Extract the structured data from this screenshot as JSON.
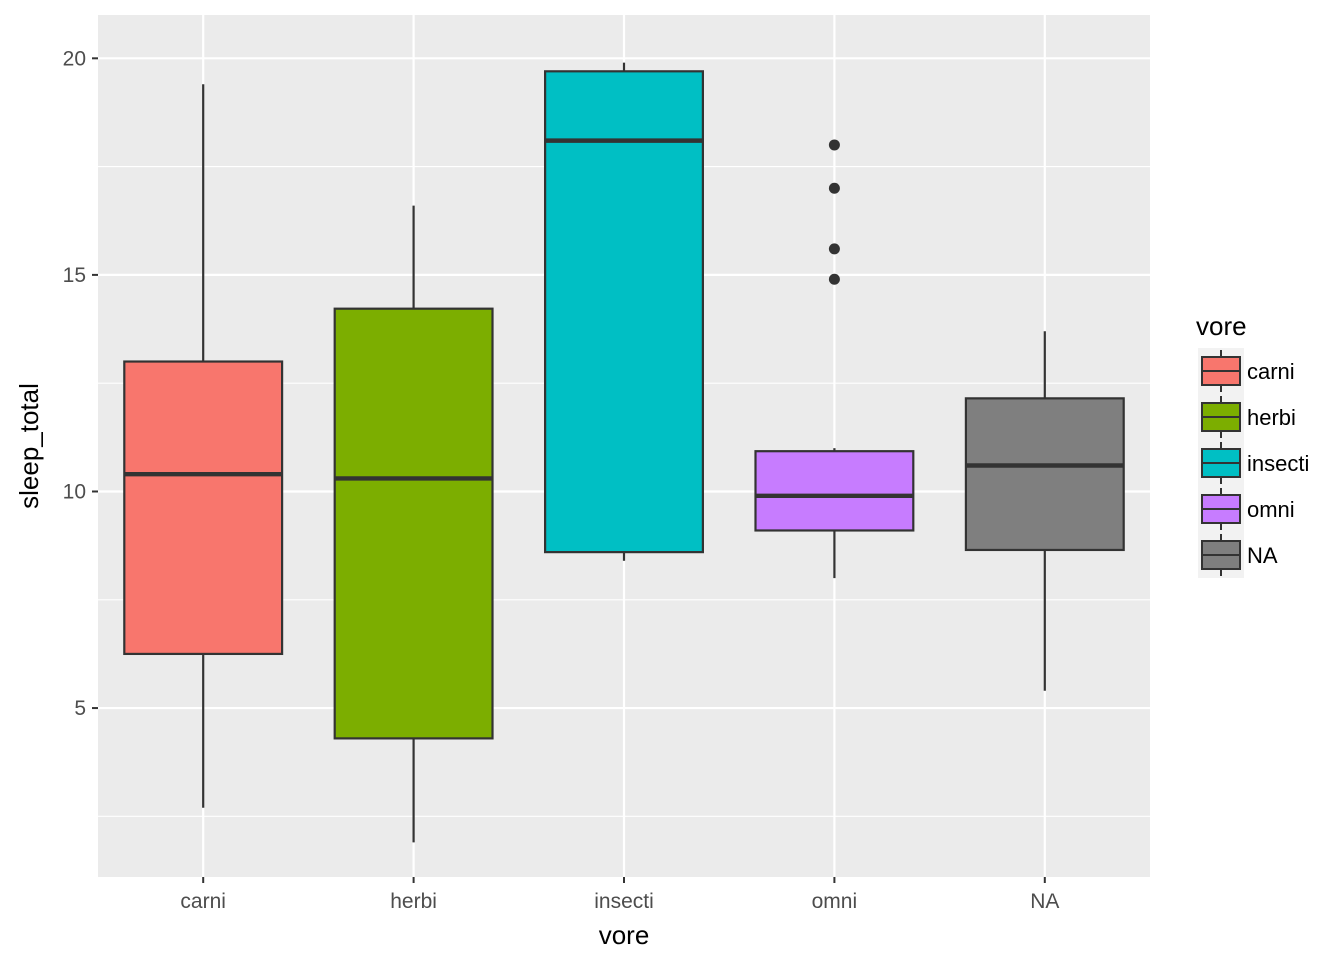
{
  "chart_data": {
    "type": "box",
    "xlabel": "vore",
    "ylabel": "sleep_total",
    "ylim": [
      1.1,
      21
    ],
    "yticks": [
      5,
      10,
      15,
      20
    ],
    "y_minor_ticks": [
      2.5,
      7.5,
      12.5,
      17.5
    ],
    "grid": true,
    "legend": {
      "title": "vore",
      "position": "right"
    },
    "categories": [
      "carni",
      "herbi",
      "insecti",
      "omni",
      "NA"
    ],
    "colors": [
      "#F8766D",
      "#7CAE00",
      "#00BFC4",
      "#C77CFF",
      "#7F7F7F"
    ],
    "boxes": [
      {
        "category": "carni",
        "whisker_low": 2.7,
        "q1": 6.25,
        "median": 10.4,
        "q3": 13.0,
        "whisker_high": 19.4,
        "outliers": []
      },
      {
        "category": "herbi",
        "whisker_low": 1.9,
        "q1": 4.3,
        "median": 10.3,
        "q3": 14.22,
        "whisker_high": 16.6,
        "outliers": []
      },
      {
        "category": "insecti",
        "whisker_low": 8.4,
        "q1": 8.6,
        "median": 18.1,
        "q3": 19.7,
        "whisker_high": 19.9,
        "outliers": []
      },
      {
        "category": "omni",
        "whisker_low": 8.0,
        "q1": 9.1,
        "median": 9.9,
        "q3": 10.93,
        "whisker_high": 11.0,
        "outliers": [
          14.9,
          15.6,
          17.0,
          18.0
        ]
      },
      {
        "category": "NA",
        "whisker_low": 5.4,
        "q1": 8.65,
        "median": 10.6,
        "q3": 12.15,
        "whisker_high": 13.7,
        "outliers": []
      }
    ]
  }
}
